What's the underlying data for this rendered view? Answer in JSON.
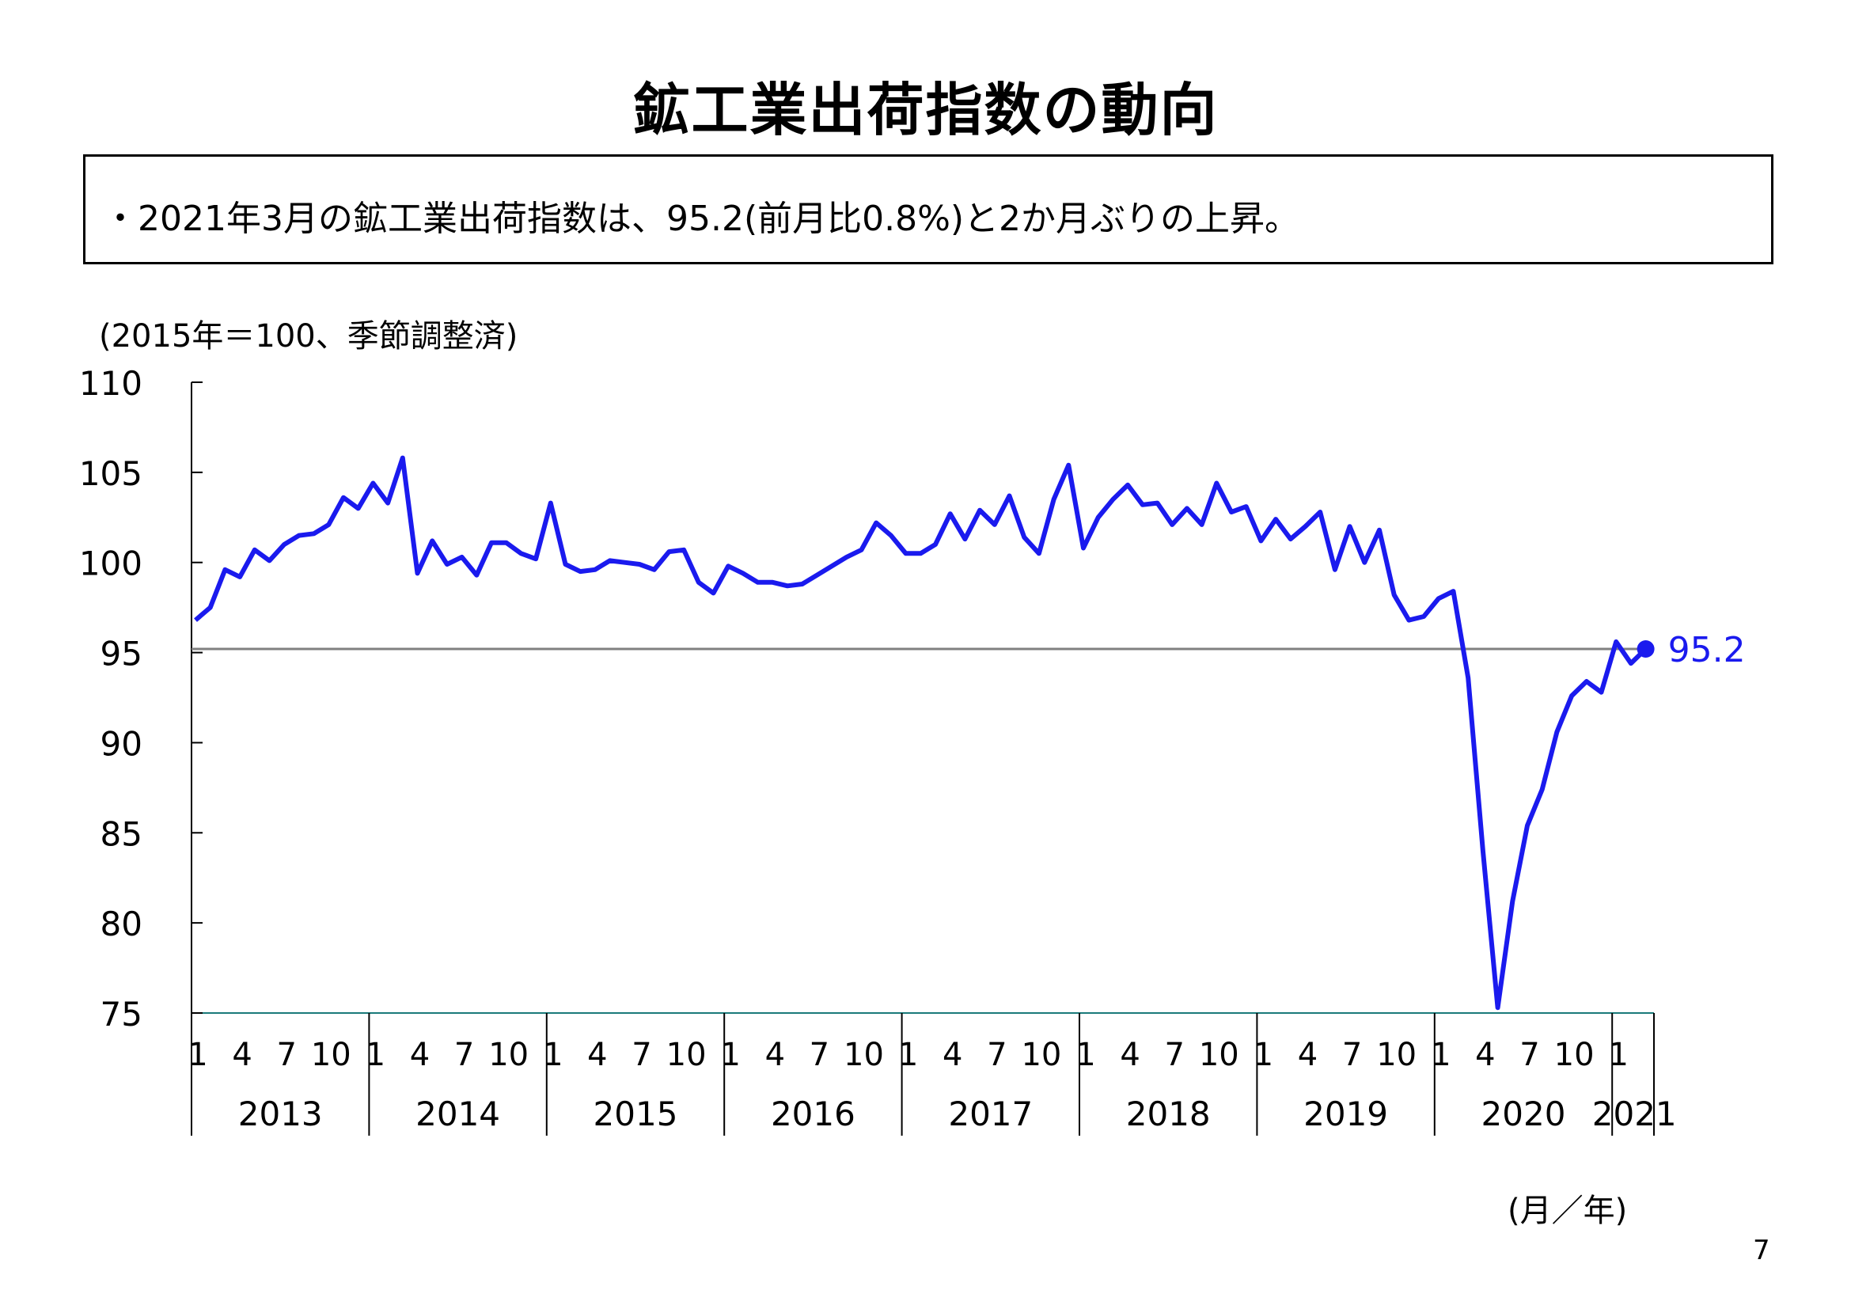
{
  "page": {
    "title": "鉱工業出荷指数の動向",
    "summary": "・2021年3月の鉱工業出荷指数は、95.2(前月比0.8%)と2か月ぶりの上昇。",
    "unit_note": "(2015年＝100、季節調整済)",
    "x_unit": "(月／年)",
    "page_number": "7"
  },
  "chart_data": {
    "type": "line",
    "ylim": [
      75,
      110
    ],
    "yticks": [
      75,
      80,
      85,
      90,
      95,
      100,
      105,
      110
    ],
    "years": [
      "2013",
      "2014",
      "2015",
      "2016",
      "2017",
      "2018",
      "2019",
      "2020",
      "2021"
    ],
    "month_ticks": [
      "1",
      "4",
      "7",
      "10"
    ],
    "reference_line": 95.2,
    "last_label": "95.2",
    "series": [
      {
        "color": "#1a1aee",
        "start": "2013-01",
        "values": [
          96.8,
          97.5,
          99.6,
          99.2,
          100.7,
          100.1,
          101.0,
          101.5,
          101.6,
          102.1,
          103.6,
          103.0,
          104.4,
          103.3,
          105.8,
          99.4,
          101.2,
          99.9,
          100.3,
          99.3,
          101.1,
          101.1,
          100.5,
          100.2,
          103.3,
          99.9,
          99.5,
          99.6,
          100.1,
          100.0,
          99.9,
          99.6,
          100.6,
          100.7,
          98.9,
          98.3,
          99.8,
          99.4,
          98.9,
          98.9,
          98.7,
          98.8,
          99.3,
          99.8,
          100.3,
          100.7,
          102.2,
          101.5,
          100.5,
          100.5,
          101.0,
          102.7,
          101.3,
          102.9,
          102.1,
          103.7,
          101.4,
          100.5,
          103.5,
          105.4,
          100.8,
          102.5,
          103.5,
          104.3,
          103.2,
          103.3,
          102.1,
          103.0,
          102.1,
          104.4,
          102.8,
          103.1,
          101.2,
          102.4,
          101.3,
          102.0,
          102.8,
          99.6,
          102.0,
          100.0,
          101.8,
          98.2,
          96.8,
          97.0,
          98.0,
          98.4,
          93.6,
          84.0,
          75.3,
          81.2,
          85.4,
          87.4,
          90.6,
          92.6,
          93.4,
          92.8,
          95.6,
          94.4,
          95.2
        ]
      }
    ]
  }
}
